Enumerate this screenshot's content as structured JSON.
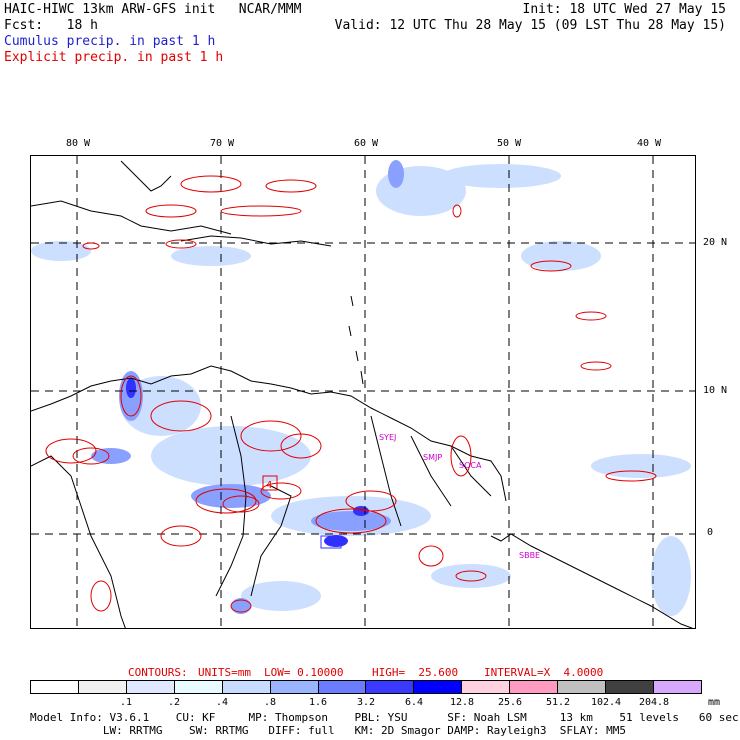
{
  "header": {
    "line1_left": "HAIC-HIWC 13km ARW-GFS init   NCAR/MMM",
    "line1_right": "Init: 18 UTC Wed 27 May 15",
    "line2_left": "Fcst:   18 h",
    "line2_right": "Valid: 12 UTC Thu 28 May 15 (09 LST Thu 28 May 15)",
    "cumulus_label": "Cumulus precip. in past 1 h",
    "explicit_label": "Explicit precip. in past 1 h"
  },
  "map": {
    "lon_labels": [
      "80 W",
      "70 W",
      "60 W",
      "50 W",
      "40 W"
    ],
    "lat_labels": [
      "20 N",
      "10 N",
      "0"
    ],
    "stations": [
      "SYEJ",
      "SMJP",
      "SOCA",
      "SBBE"
    ],
    "box_label": "4",
    "colors": {
      "coast": "#000000",
      "contour": "#e00000",
      "shade_light": "#c8dcff",
      "shade_mid": "#8aa0ff",
      "shade_dark": "#3030ff",
      "station": "#cc00cc",
      "grid": "#000000"
    }
  },
  "contours_line": {
    "contours": "CONTOURS:",
    "units": "UNITS=mm",
    "low": "LOW= 0.10000",
    "high": "HIGH=  25.600",
    "interval": "INTERVAL=X  4.0000"
  },
  "colorbar": {
    "unit": "mm",
    "ticks": [
      ".1",
      ".2",
      ".4",
      ".8",
      "1.6",
      "3.2",
      "6.4",
      "12.8",
      "25.6",
      "51.2",
      "102.4",
      "204.8"
    ],
    "colors": [
      "#ffffff",
      "#f0f0f0",
      "#e0e8ff",
      "#e8fcff",
      "#c8dcff",
      "#9ab4ff",
      "#6b7cff",
      "#3a3aff",
      "#0000ff",
      "#ffd0e0",
      "#ff9ac0",
      "#c0c0c0",
      "#404040",
      "#d8a8ff"
    ]
  },
  "model_info": {
    "line1": "Model Info: V3.6.1    CU: KF     MP: Thompson    PBL: YSU      SF: Noah LSM     13 km    51 levels   60 sec",
    "line2": "           LW: RRTMG    SW: RRTMG   DIFF: full   KM: 2D Smagor DAMP: Rayleigh3  SFLAY: MM5"
  }
}
